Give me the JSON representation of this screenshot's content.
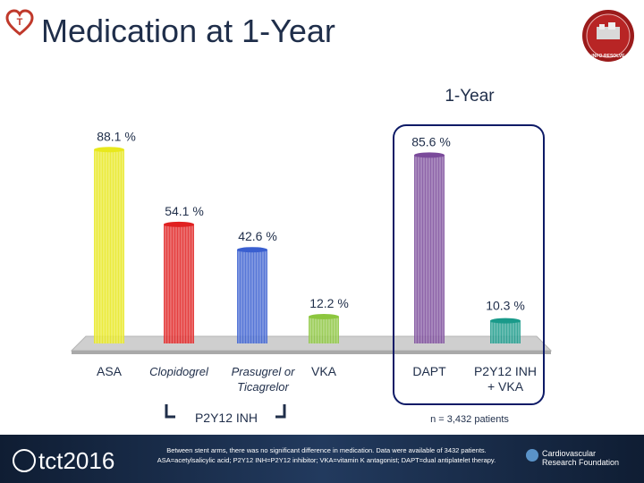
{
  "header": {
    "title": "Medication at 1-Year",
    "brand_color": "#c0392b"
  },
  "seal": {
    "text": "INFO-RESOLVE"
  },
  "chart_data": {
    "type": "bar",
    "title": "1-Year",
    "categories": [
      "ASA",
      "Clopidogrel",
      "Prasugrel or Ticagrelor",
      "VKA",
      "DAPT",
      "P2Y12 INH + VKA"
    ],
    "category_lines": [
      [
        "ASA"
      ],
      [
        "Clopidogrel"
      ],
      [
        "Prasugrel or",
        "Ticagrelor"
      ],
      [
        "VKA"
      ],
      [
        "DAPT"
      ],
      [
        "P2Y12 INH",
        "+ VKA"
      ]
    ],
    "values": [
      88.1,
      54.1,
      42.6,
      12.2,
      85.6,
      10.3
    ],
    "value_labels": [
      "88.1 %",
      "54.1 %",
      "42.6 %",
      "12.2 %",
      "85.6 %",
      "10.3 %"
    ],
    "colors": [
      "#e8e81c",
      "#e02020",
      "#3a5fd0",
      "#8cc63e",
      "#7a4a9a",
      "#1a9a8a"
    ],
    "ylim": [
      0,
      100
    ],
    "grid": false,
    "group_label": "P2Y12 INH",
    "highlight_note": "n = 3,432 patients"
  },
  "footer": {
    "logo_text": "tct2016",
    "note_line1": "Between stent arms, there was no significant difference in medication. Data were available of 3432 patients.",
    "note_line2": "ASA=acetylsalicylic acid; P2Y12 INH=P2Y12 inhibitor; VKA=vitamin K antagonist; DAPT=dual antiplatelet therapy.",
    "org_line1": "Cardiovascular",
    "org_line2": "Research Foundation"
  }
}
